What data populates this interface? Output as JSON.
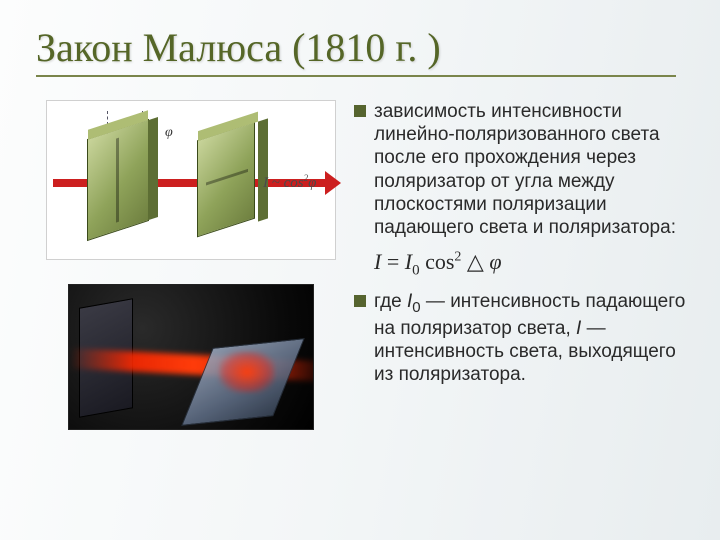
{
  "title": "Закон Малюса  (1810 г. )",
  "bullets": [
    "зависимость интенсивности линейно-поляризованного света после его прохождения через поляризатор от угла между плоскостями поляризации падающего света и поляризатора:",
    "где I₀ — интенсивность падающего на поляризатор света, I — интенсивность света, выходящего из поляризатора."
  ],
  "formula": {
    "text": "I = I0 cos^2 △ φ",
    "I": "I",
    "eq": " = ",
    "I0": "I",
    "sub0": "0",
    "cos": " cos",
    "sup2": "2",
    "triangle": " △ ",
    "phi": "φ"
  },
  "dia1": {
    "phi_label": "φ",
    "intensity_label_prefix": "I ~ cos",
    "intensity_label_sup": "2",
    "intensity_label_suffix": "φ",
    "arrow_color": "#cc1f1f",
    "plate_color": "#8fa35a"
  },
  "colors": {
    "title_color": "#556627",
    "underline": "#7a854b",
    "bullet": "#56642f",
    "bg_start": "#fcfdfd",
    "bg_end": "#e8edef"
  }
}
